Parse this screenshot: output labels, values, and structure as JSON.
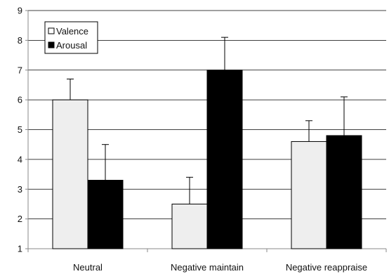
{
  "chart_data": {
    "type": "bar",
    "categories": [
      "Neutral",
      "Negative maintain",
      "Negative reappraise"
    ],
    "series": [
      {
        "name": "Valence",
        "values": [
          6.0,
          2.5,
          4.6
        ],
        "error": [
          0.7,
          0.9,
          0.7
        ],
        "color": "#eeeeee"
      },
      {
        "name": "Arousal",
        "values": [
          3.3,
          7.0,
          4.8
        ],
        "error": [
          1.2,
          1.1,
          1.3
        ],
        "color": "#000000"
      }
    ],
    "yticks": [
      1,
      2,
      3,
      4,
      5,
      6,
      7,
      8,
      9
    ],
    "ylim": [
      1,
      9
    ],
    "grid": true,
    "legend": "top-left",
    "error_bars": "upper"
  }
}
